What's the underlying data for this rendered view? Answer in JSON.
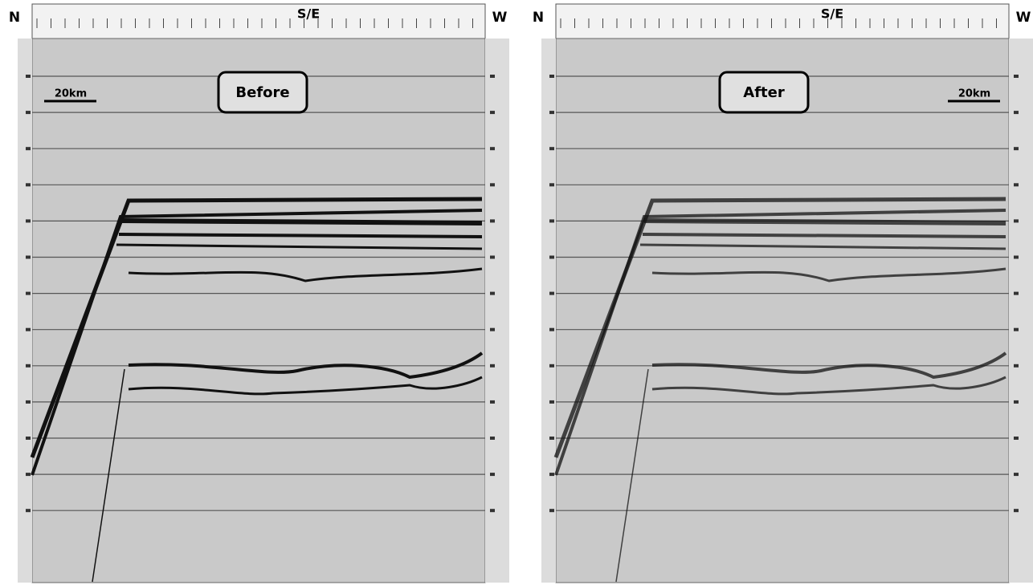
{
  "panels": [
    {
      "left_label": "N",
      "center_label": "S/E",
      "right_label": "W",
      "scale": "20km",
      "label": "Before"
    },
    {
      "left_label": "N",
      "center_label": "S/E",
      "right_label": "W",
      "scale": "20km",
      "label": "After"
    }
  ]
}
